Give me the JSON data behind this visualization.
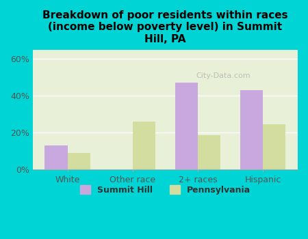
{
  "title": "Breakdown of poor residents within races\n(income below poverty level) in Summit\nHill, PA",
  "categories": [
    "White",
    "Other race",
    "2+ races",
    "Hispanic"
  ],
  "summit_hill": [
    0.13,
    0.0,
    0.47,
    0.43
  ],
  "pennsylvania": [
    0.09,
    0.26,
    0.185,
    0.245
  ],
  "summit_hill_color": "#c9a8e0",
  "pennsylvania_color": "#d4dda0",
  "background_outer": "#00d4d4",
  "background_inner": "#e8f0d8",
  "title_color": "#000000",
  "axis_label_color": "#555555",
  "ytick_labels": [
    "0%",
    "20%",
    "40%",
    "60%"
  ],
  "ytick_vals": [
    0,
    0.2,
    0.4,
    0.6
  ],
  "ylim": [
    0,
    0.65
  ],
  "bar_width": 0.35,
  "legend_labels": [
    "Summit Hill",
    "Pennsylvania"
  ],
  "watermark": "City-Data.com"
}
